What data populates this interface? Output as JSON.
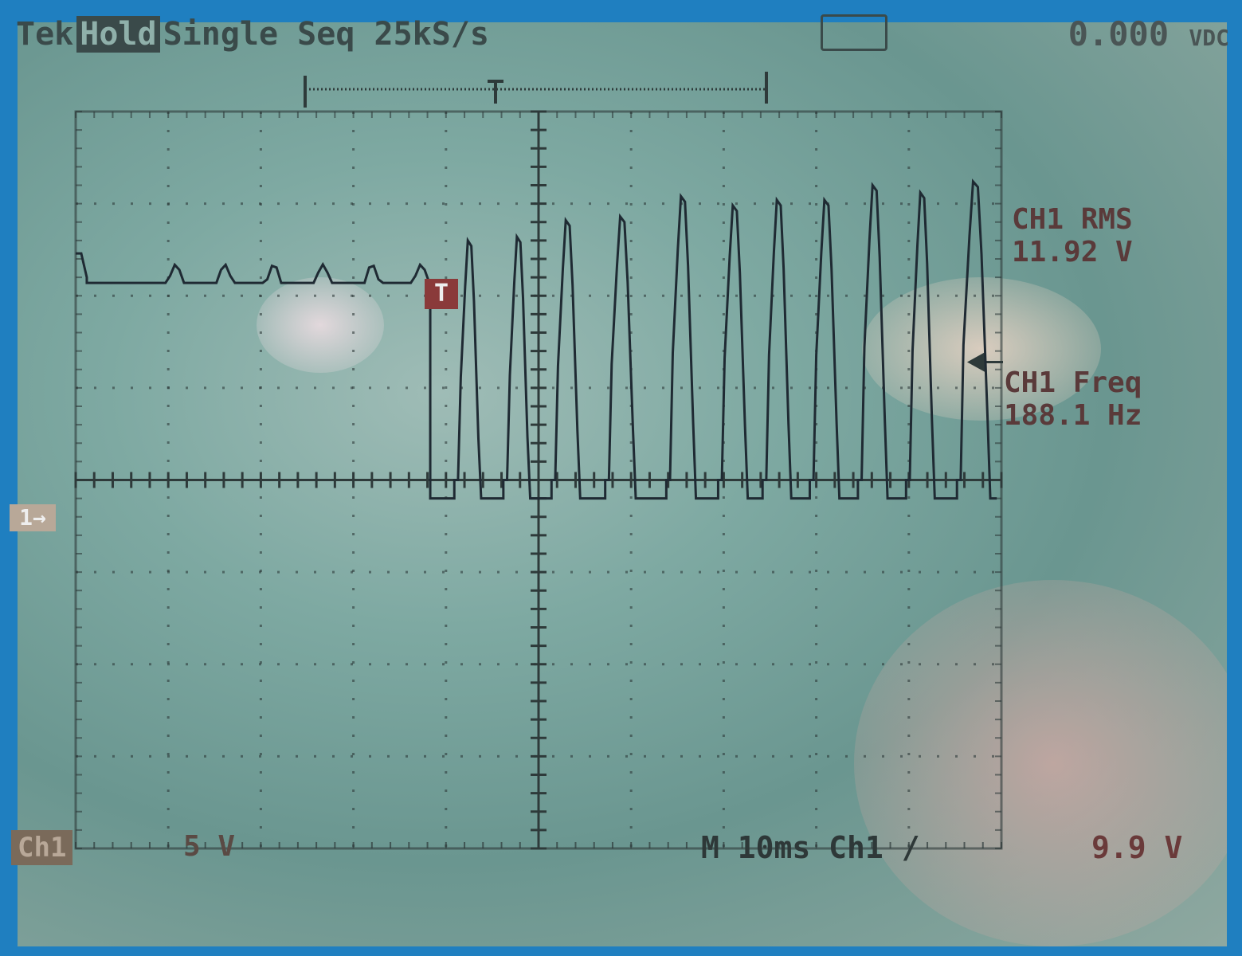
{
  "header": {
    "brand": "Tek",
    "mode": "Hold",
    "acquisition": "Single Seq",
    "sample_rate": "25kS/s",
    "dvm_icon": "scope-probe-icon",
    "dvm_value": "0.000",
    "dvm_unit": "VDC"
  },
  "measurements": [
    {
      "label": "CH1 RMS",
      "value": "11.92 V"
    },
    {
      "label": "CH1 Freq",
      "value": "188.1 Hz"
    }
  ],
  "footer": {
    "channel": "Ch1",
    "volts_per_div": "5 V",
    "timebase": "M 10ms",
    "trigger_source": "Ch1",
    "trigger_slope": "rising",
    "trigger_slope_glyph": "/",
    "trigger_level": "9.9 V"
  },
  "markers": {
    "ground": "1→",
    "trigger": "T"
  },
  "colors": {
    "trace": "#1f2a33",
    "screen": "#7ea9a2",
    "bezel": "#1f7fc0",
    "measure_text": "#5a3a3a"
  },
  "chart_data": {
    "type": "line",
    "title": "",
    "xlabel": "",
    "ylabel": "",
    "x_unit": "ms",
    "y_unit": "V",
    "xlim": [
      0,
      100
    ],
    "ylim": [
      -16.5,
      23.5
    ],
    "grid": true,
    "divisions": {
      "horizontal": 10,
      "vertical": 8
    },
    "pre_trigger": {
      "start_ms": 0,
      "end_ms": 38.3,
      "level_V": 14.5,
      "ripple_V": 1
    },
    "low_level_V": 2.5,
    "pulses": [
      {
        "rise_ms": 41.6,
        "fall_ms": 43.5,
        "peak_V": 16.5
      },
      {
        "rise_ms": 46.9,
        "fall_ms": 48.8,
        "peak_V": 16.7
      },
      {
        "rise_ms": 52.1,
        "fall_ms": 54.2,
        "peak_V": 17.6
      },
      {
        "rise_ms": 57.9,
        "fall_ms": 60.2,
        "peak_V": 17.8
      },
      {
        "rise_ms": 64.5,
        "fall_ms": 66.7,
        "peak_V": 18.9
      },
      {
        "rise_ms": 70.1,
        "fall_ms": 72.3,
        "peak_V": 18.4
      },
      {
        "rise_ms": 74.9,
        "fall_ms": 77.0,
        "peak_V": 18.7
      },
      {
        "rise_ms": 80.0,
        "fall_ms": 82.2,
        "peak_V": 18.7
      },
      {
        "rise_ms": 85.2,
        "fall_ms": 87.4,
        "peak_V": 19.5
      },
      {
        "rise_ms": 90.4,
        "fall_ms": 92.5,
        "peak_V": 19.1
      },
      {
        "rise_ms": 95.9,
        "fall_ms": 98.5,
        "peak_V": 19.7
      }
    ]
  }
}
